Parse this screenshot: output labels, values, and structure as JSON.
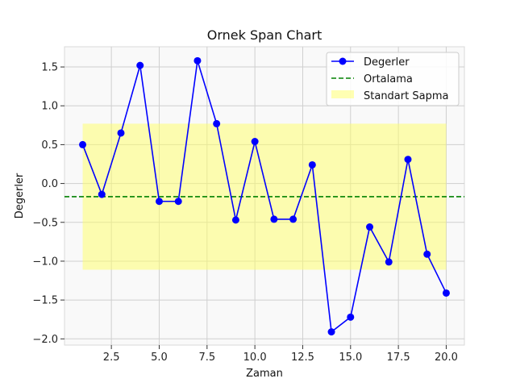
{
  "chart_data": {
    "type": "line",
    "title": "Ornek Span Chart",
    "xlabel": "Zaman",
    "ylabel": "Degerler",
    "xlim": [
      0.05,
      20.95
    ],
    "ylim": [
      -2.08,
      1.76
    ],
    "xticks": [
      2.5,
      5.0,
      7.5,
      10.0,
      12.5,
      15.0,
      17.5,
      20.0
    ],
    "xtick_labels": [
      "2.5",
      "5.0",
      "7.5",
      "10.0",
      "12.5",
      "15.0",
      "17.5",
      "20.0"
    ],
    "yticks": [
      1.5,
      1.0,
      0.5,
      0.0,
      -0.5,
      -1.0,
      -1.5,
      -2.0
    ],
    "ytick_labels": [
      "1.5",
      "1.0",
      "0.5",
      "0.0",
      "−0.5",
      "−1.0",
      "−1.5",
      "−2.0"
    ],
    "grid": true,
    "legend_position": "top-right",
    "series": [
      {
        "name": "Degerler",
        "color": "#0000ff",
        "x": [
          1,
          2,
          3,
          4,
          5,
          6,
          7,
          8,
          9,
          10,
          11,
          12,
          13,
          14,
          15,
          16,
          17,
          18,
          19,
          20
        ],
        "values": [
          0.5,
          -0.14,
          0.65,
          1.52,
          -0.23,
          -0.23,
          1.58,
          0.77,
          -0.47,
          0.54,
          -0.46,
          -0.46,
          0.24,
          -1.91,
          -1.72,
          -0.56,
          -1.01,
          0.31,
          -0.91,
          -1.41
        ]
      }
    ],
    "mean_line": {
      "name": "Ortalama",
      "value": -0.17,
      "color": "#008000"
    },
    "std_band": {
      "name": "Standart Sapma",
      "x_start": 1,
      "x_end": 20,
      "lower": -1.11,
      "upper": 0.77,
      "color": "#ffff66"
    }
  }
}
